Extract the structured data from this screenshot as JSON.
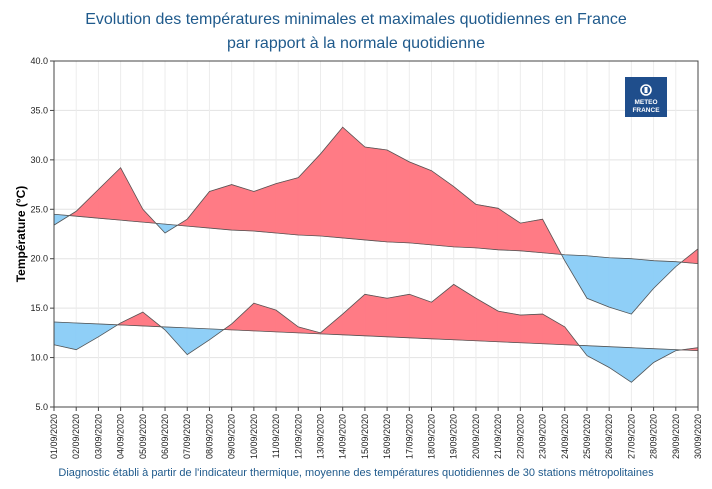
{
  "chart_data": {
    "type": "area",
    "title": "Evolution des températures minimales et maximales quotidiennes en France",
    "subtitle": "par rapport à la normale quotidienne",
    "ylabel": "Température (°C)",
    "xlabel": "",
    "footer": "Diagnostic établi à partir de l'indicateur thermique, moyenne des températures quotidiennes de 30 stations métropolitaines",
    "ylim": [
      5.0,
      40.0
    ],
    "yticks": [
      "5.0",
      "10.0",
      "15.0",
      "20.0",
      "25.0",
      "30.0",
      "35.0",
      "40.0"
    ],
    "grid": true,
    "above_normal_color": "#ff7b85",
    "below_normal_color": "#8fcff7",
    "categories": [
      "01/09/2020",
      "02/09/2020",
      "03/09/2020",
      "04/09/2020",
      "05/09/2020",
      "06/09/2020",
      "07/09/2020",
      "08/09/2020",
      "09/09/2020",
      "10/09/2020",
      "11/09/2020",
      "12/09/2020",
      "13/09/2020",
      "14/09/2020",
      "15/09/2020",
      "16/09/2020",
      "17/09/2020",
      "18/09/2020",
      "19/09/2020",
      "20/09/2020",
      "21/09/2020",
      "22/09/2020",
      "23/09/2020",
      "24/09/2020",
      "25/09/2020",
      "26/09/2020",
      "27/09/2020",
      "28/09/2020",
      "29/09/2020",
      "30/09/2020"
    ],
    "series": [
      {
        "values": [
          23.4,
          24.8,
          27.0,
          29.2,
          25.0,
          22.6,
          24.0,
          26.8,
          27.5,
          26.8,
          27.6,
          28.2,
          30.6,
          33.3,
          31.3,
          31.0,
          29.8,
          28.9,
          27.3,
          25.5,
          25.1,
          23.6,
          24.0,
          19.8,
          16.0,
          15.1,
          14.4,
          17.0,
          19.2,
          21.0
        ]
      },
      {
        "values": [
          24.5,
          24.3,
          24.1,
          23.9,
          23.7,
          23.5,
          23.3,
          23.1,
          22.9,
          22.8,
          22.6,
          22.4,
          22.3,
          22.1,
          21.9,
          21.7,
          21.6,
          21.4,
          21.2,
          21.1,
          20.9,
          20.8,
          20.6,
          20.4,
          20.3,
          20.1,
          20.0,
          19.8,
          19.7,
          19.5
        ]
      },
      {
        "values": [
          11.3,
          10.8,
          12.1,
          13.5,
          14.6,
          12.8,
          10.3,
          11.8,
          13.4,
          15.5,
          14.8,
          13.1,
          12.5,
          14.4,
          16.4,
          16.0,
          16.4,
          15.6,
          17.4,
          16.0,
          14.7,
          14.3,
          14.4,
          13.1,
          10.2,
          9.0,
          7.5,
          9.5,
          10.7,
          11.0
        ]
      },
      {
        "values": [
          13.6,
          13.5,
          13.4,
          13.3,
          13.2,
          13.1,
          13.0,
          12.9,
          12.8,
          12.7,
          12.6,
          12.5,
          12.4,
          12.3,
          12.2,
          12.1,
          12.0,
          11.9,
          11.8,
          11.7,
          11.6,
          11.5,
          11.4,
          11.3,
          11.2,
          11.1,
          11.0,
          10.9,
          10.8,
          10.7
        ]
      }
    ]
  },
  "logo": {
    "line1": "METEO",
    "line2": "FRANCE"
  }
}
